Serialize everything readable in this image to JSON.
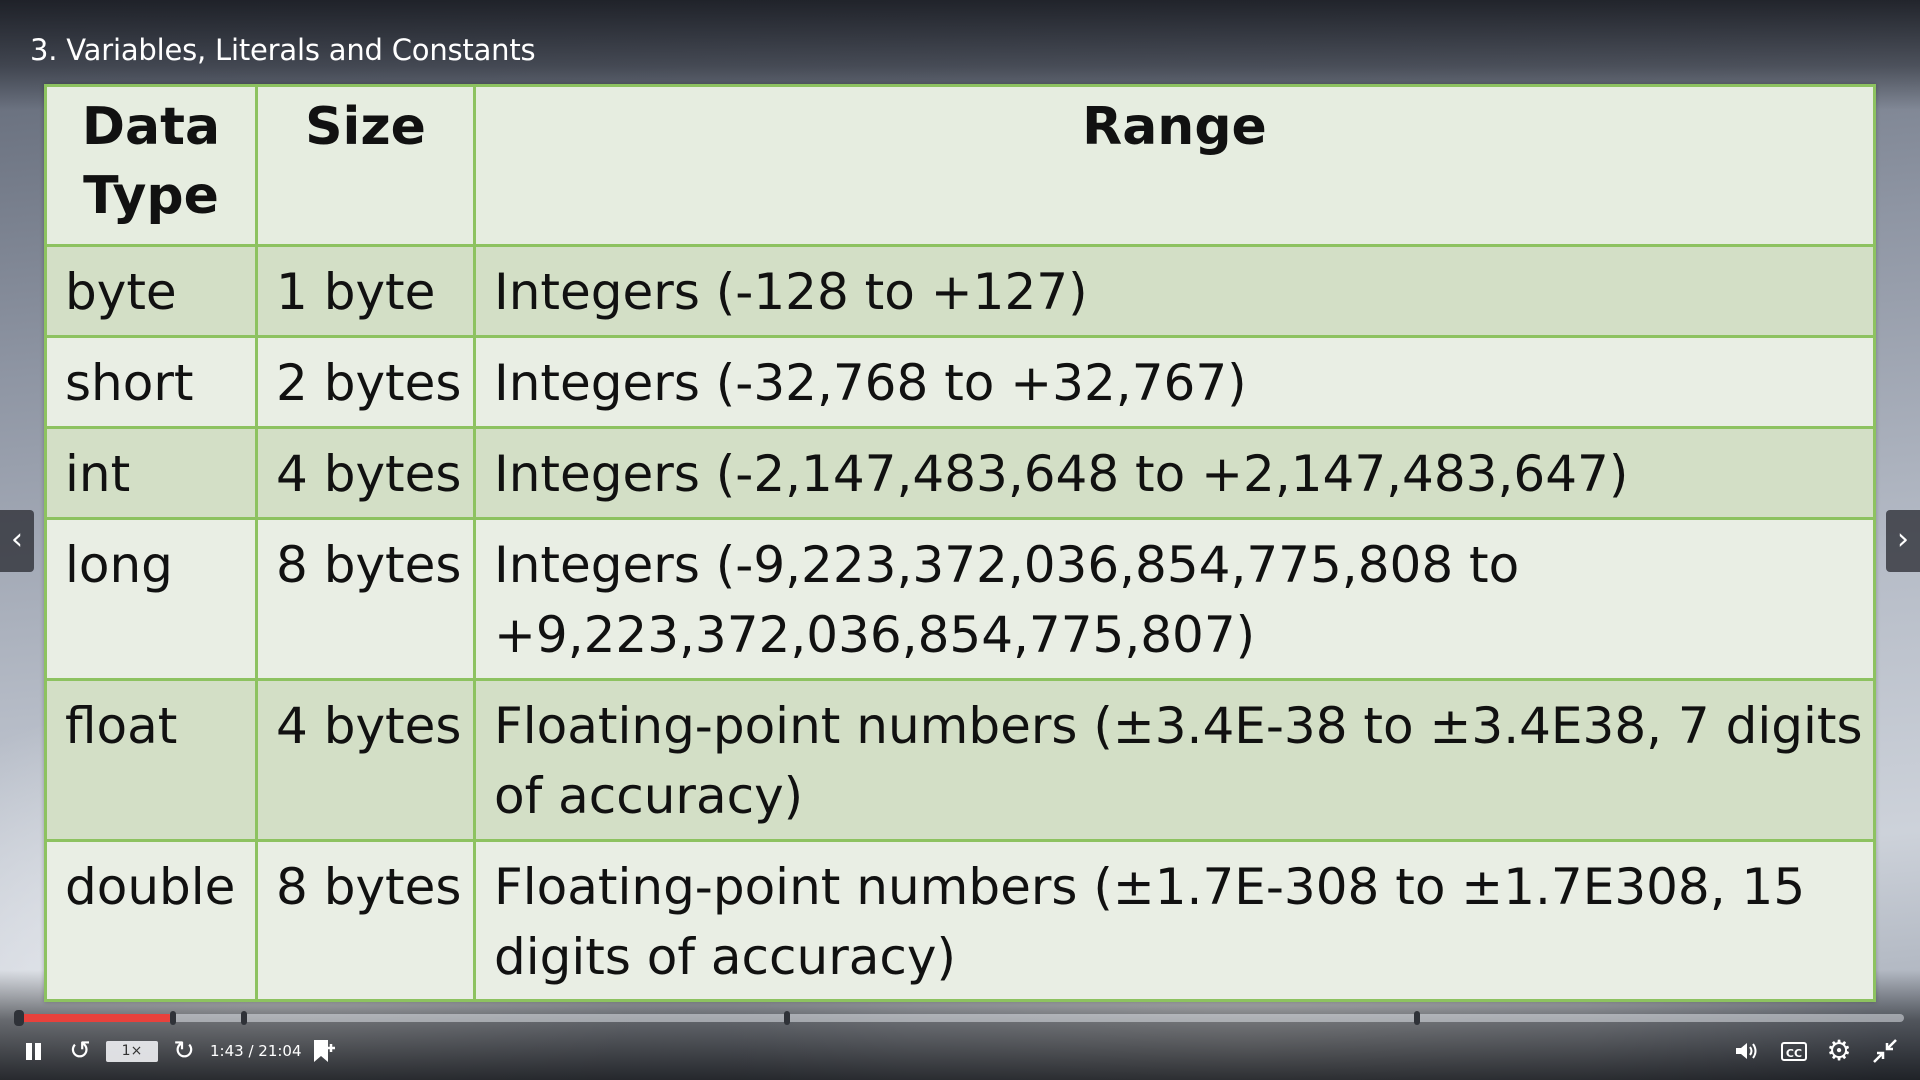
{
  "player": {
    "title": "3. Variables, Literals and Constants",
    "nav_prev_glyph": "‹",
    "nav_next_glyph": "›"
  },
  "slide_table": {
    "headers": {
      "data_type": "Data Type",
      "size": "Size",
      "range": "Range"
    },
    "rows": [
      {
        "type": "byte",
        "size": "1 byte",
        "range": "Integers (-128 to +127)"
      },
      {
        "type": "short",
        "size": "2 bytes",
        "range": "Integers (-32,768 to +32,767)"
      },
      {
        "type": "int",
        "size": "4 bytes",
        "range": "Integers (-2,147,483,648 to +2,147,483,647)"
      },
      {
        "type": "long",
        "size": "8 bytes",
        "range": "Integers (-9,223,372,036,854,775,808 to +9,223,372,036,854,775,807)"
      },
      {
        "type": "float",
        "size": "4 bytes",
        "range": "Floating-point numbers (±3.4E-38 to ±3.4E38, 7 digits of accuracy)"
      },
      {
        "type": "double",
        "size": "8 bytes",
        "range": "Floating-point numbers (±1.7E-308 to ±1.7E308, 15 digits of accuracy)"
      }
    ]
  },
  "progress": {
    "played_fraction": 0.082,
    "chapter_fractions": [
      0.0,
      0.12,
      0.408,
      0.742
    ],
    "played_color": "#e8413c"
  },
  "controls": {
    "speed_label": "1×",
    "time_label": "1:43 / 21:04",
    "cc_label": "CC",
    "icons": {
      "pause": "pause-icon",
      "replay": "replay-icon",
      "forward": "forward-icon",
      "bookmark": "bookmark-icon",
      "volume": "volume-icon",
      "captions": "cc-icon",
      "settings": "gear-icon",
      "fullscreen": "exit-fullscreen-icon"
    }
  }
}
